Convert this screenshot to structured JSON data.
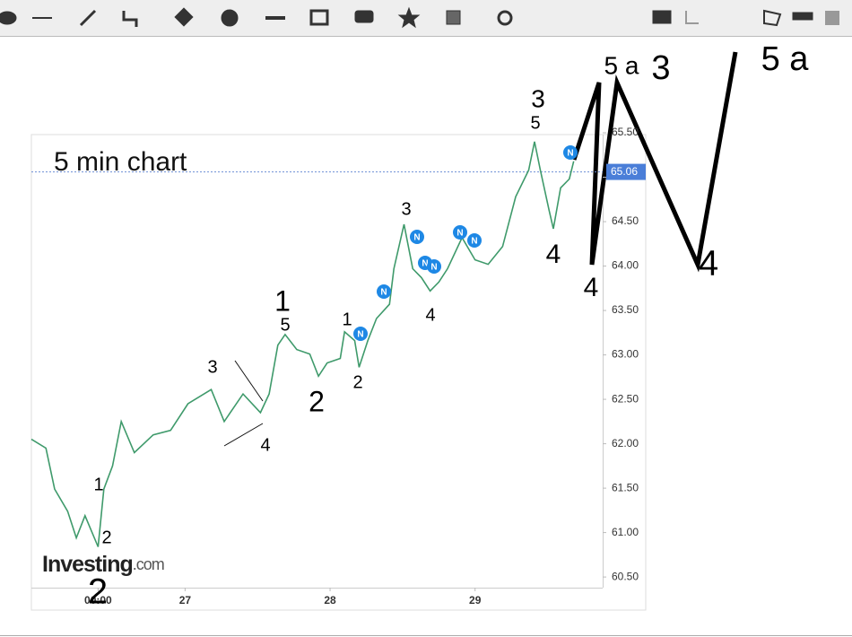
{
  "chart": {
    "type": "line",
    "title": "5 min chart",
    "watermark": {
      "brand": "Investing",
      "suffix": ".com"
    },
    "price_label": {
      "value": 65.06,
      "label": "65.06"
    },
    "xlim": [
      25.94,
      29.88
    ],
    "xticks": [
      {
        "value": 26.4,
        "label": "00:00"
      },
      27,
      28,
      29
    ],
    "ylim": [
      60.38,
      65.48
    ],
    "yticks": [
      {
        "value": 60.5,
        "label": "60.50"
      },
      {
        "value": 61,
        "label": "61.00"
      },
      {
        "value": 61.5,
        "label": "61.50"
      },
      {
        "value": 62,
        "label": "62.00"
      },
      {
        "value": 62.5,
        "label": "62.50"
      },
      {
        "value": 63,
        "label": "63.00"
      },
      {
        "value": 63.5,
        "label": "63.50"
      },
      {
        "value": 64,
        "label": "64.00"
      },
      {
        "value": 64.5,
        "label": "64.50"
      },
      {
        "value": 65,
        "label": "65.00"
      },
      {
        "value": 65.5,
        "label": "65.50"
      }
    ],
    "series": [
      {
        "color": "#3f9a6b",
        "x": [
          25.94,
          26.04,
          26.1,
          26.19,
          26.25,
          26.31,
          26.4,
          26.44,
          26.5,
          26.56,
          26.65,
          26.78,
          26.9,
          27.02,
          27.18,
          27.27,
          27.4,
          27.52,
          27.58,
          27.64,
          27.69,
          27.77,
          27.86,
          27.92,
          27.98,
          28.07,
          28.1,
          28.17,
          28.2,
          28.26,
          28.32,
          28.41,
          28.44,
          28.51,
          28.57,
          28.63,
          28.69,
          28.75,
          28.81,
          28.91,
          29.0,
          29.09,
          29.19,
          29.28,
          29.37,
          29.41,
          29.45,
          29.51,
          29.54,
          29.59,
          29.65,
          29.68
        ],
        "values": [
          62.05,
          61.95,
          61.49,
          61.24,
          60.94,
          61.19,
          60.84,
          61.49,
          61.75,
          62.25,
          61.9,
          62.1,
          62.15,
          62.45,
          62.61,
          62.25,
          62.56,
          62.35,
          62.56,
          63.11,
          63.23,
          63.06,
          63.01,
          62.76,
          62.91,
          62.96,
          63.26,
          63.16,
          62.86,
          63.16,
          63.41,
          63.57,
          63.97,
          64.47,
          63.97,
          63.87,
          63.72,
          63.82,
          63.97,
          64.32,
          64.07,
          64.02,
          64.22,
          64.78,
          65.08,
          65.4,
          65.08,
          64.63,
          64.42,
          64.88,
          64.98,
          65.18
        ]
      }
    ],
    "news_marker": "N",
    "wave_labels": [
      "5 a",
      "3",
      "5 a",
      "3",
      "5",
      "4",
      "4",
      "4",
      "3",
      "4",
      "1",
      "2",
      "1",
      "5",
      "2",
      "3",
      "4",
      "1",
      "2",
      "2"
    ]
  }
}
